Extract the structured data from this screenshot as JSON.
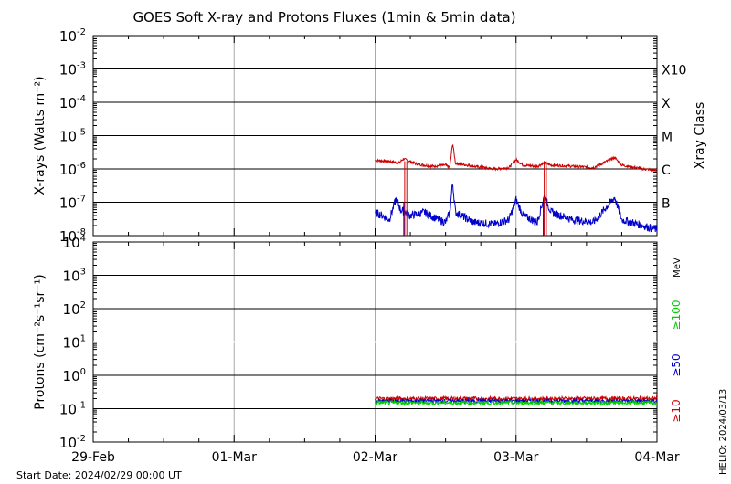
{
  "title": "GOES Soft X-ray and Protons Fluxes   (1min & 5min data)",
  "start_date": "Start Date: 2024/02/29 00:00 UT",
  "credit": "HELIO: 2024/03/13",
  "colors": {
    "xray_long": "#cc0000",
    "xray_short": "#0000cc",
    "p10": "#cc0000",
    "p50": "#0000cc",
    "p100": "#00cc00"
  },
  "chart_data": [
    {
      "type": "line",
      "name": "xray-panel",
      "ylabel": "X-rays (Watts m⁻²)",
      "right_label": "Xray Class",
      "yscale": "log",
      "ylim": [
        1e-08,
        0.01
      ],
      "ytick_exponents": [
        -8,
        -7,
        -6,
        -5,
        -4,
        -3,
        -2
      ],
      "xrange_days": [
        0,
        4
      ],
      "xray_classes": [
        {
          "label": "X10",
          "value": 0.001
        },
        {
          "label": "X",
          "value": 0.0001
        },
        {
          "label": "M",
          "value": 1e-05
        },
        {
          "label": "C",
          "value": 1e-06
        },
        {
          "label": "B",
          "value": 1e-07
        }
      ],
      "series": [
        {
          "key": "long",
          "points": [
            [
              2.0,
              1.8e-06
            ],
            [
              2.1,
              1.7e-06
            ],
            [
              2.17,
              1.5e-06
            ],
            [
              2.2,
              2e-06
            ],
            [
              2.3,
              1.4e-06
            ],
            [
              2.4,
              1.2e-06
            ],
            [
              2.5,
              1.3e-06
            ],
            [
              2.53,
              1.1e-06
            ],
            [
              2.55,
              6e-06
            ],
            [
              2.57,
              1.5e-06
            ],
            [
              2.7,
              1.2e-06
            ],
            [
              2.85,
              1e-06
            ],
            [
              2.95,
              1.1e-06
            ],
            [
              3.0,
              1.9e-06
            ],
            [
              3.05,
              1.3e-06
            ],
            [
              3.15,
              1.2e-06
            ],
            [
              3.2,
              1.5e-06
            ],
            [
              3.25,
              1.3e-06
            ],
            [
              3.4,
              1.2e-06
            ],
            [
              3.55,
              1.1e-06
            ],
            [
              3.7,
              2.2e-06
            ],
            [
              3.75,
              1.3e-06
            ],
            [
              3.9,
              1e-06
            ],
            [
              4.0,
              9e-07
            ]
          ]
        },
        {
          "key": "short",
          "points": [
            [
              2.0,
              5e-08
            ],
            [
              2.05,
              4e-08
            ],
            [
              2.1,
              3e-08
            ],
            [
              2.15,
              1.3e-07
            ],
            [
              2.18,
              6e-08
            ],
            [
              2.25,
              4e-08
            ],
            [
              2.35,
              5e-08
            ],
            [
              2.45,
              3e-08
            ],
            [
              2.5,
              2.5e-08
            ],
            [
              2.53,
              5e-08
            ],
            [
              2.55,
              4e-07
            ],
            [
              2.57,
              5e-08
            ],
            [
              2.7,
              2.5e-08
            ],
            [
              2.85,
              2.2e-08
            ],
            [
              2.95,
              3e-08
            ],
            [
              3.0,
              1.2e-07
            ],
            [
              3.05,
              4e-08
            ],
            [
              3.15,
              2.5e-08
            ],
            [
              3.2,
              1.5e-07
            ],
            [
              3.25,
              5e-08
            ],
            [
              3.4,
              3e-08
            ],
            [
              3.55,
              2.5e-08
            ],
            [
              3.7,
              1.4e-07
            ],
            [
              3.75,
              3e-08
            ],
            [
              3.9,
              2e-08
            ],
            [
              4.0,
              1.5e-08
            ]
          ]
        }
      ]
    },
    {
      "type": "line",
      "name": "proton-panel",
      "ylabel": "Protons (cm⁻²s⁻¹sr⁻¹)",
      "yscale": "log",
      "ylim": [
        0.01,
        10000
      ],
      "ytick_exponents": [
        -2,
        -1,
        0,
        1,
        2,
        3,
        4
      ],
      "threshold": 10,
      "xrange_days": [
        0,
        4
      ],
      "xtick_labels": [
        "29-Feb",
        "01-Mar",
        "02-Mar",
        "03-Mar",
        "04-Mar"
      ],
      "legend": [
        {
          "label": "≥10",
          "color": "#cc0000"
        },
        {
          "label": "≥50",
          "color": "#0000cc"
        },
        {
          "label": "≥100",
          "color": "#00cc00"
        }
      ],
      "legend_unit": "MeV",
      "series": [
        {
          "key": "p10",
          "start_day": 2.0,
          "end_day": 4.0,
          "level": 0.2
        },
        {
          "key": "p50",
          "start_day": 2.0,
          "end_day": 4.0,
          "level": 0.17
        },
        {
          "key": "p100",
          "start_day": 2.0,
          "end_day": 4.0,
          "level": 0.15
        }
      ]
    }
  ]
}
